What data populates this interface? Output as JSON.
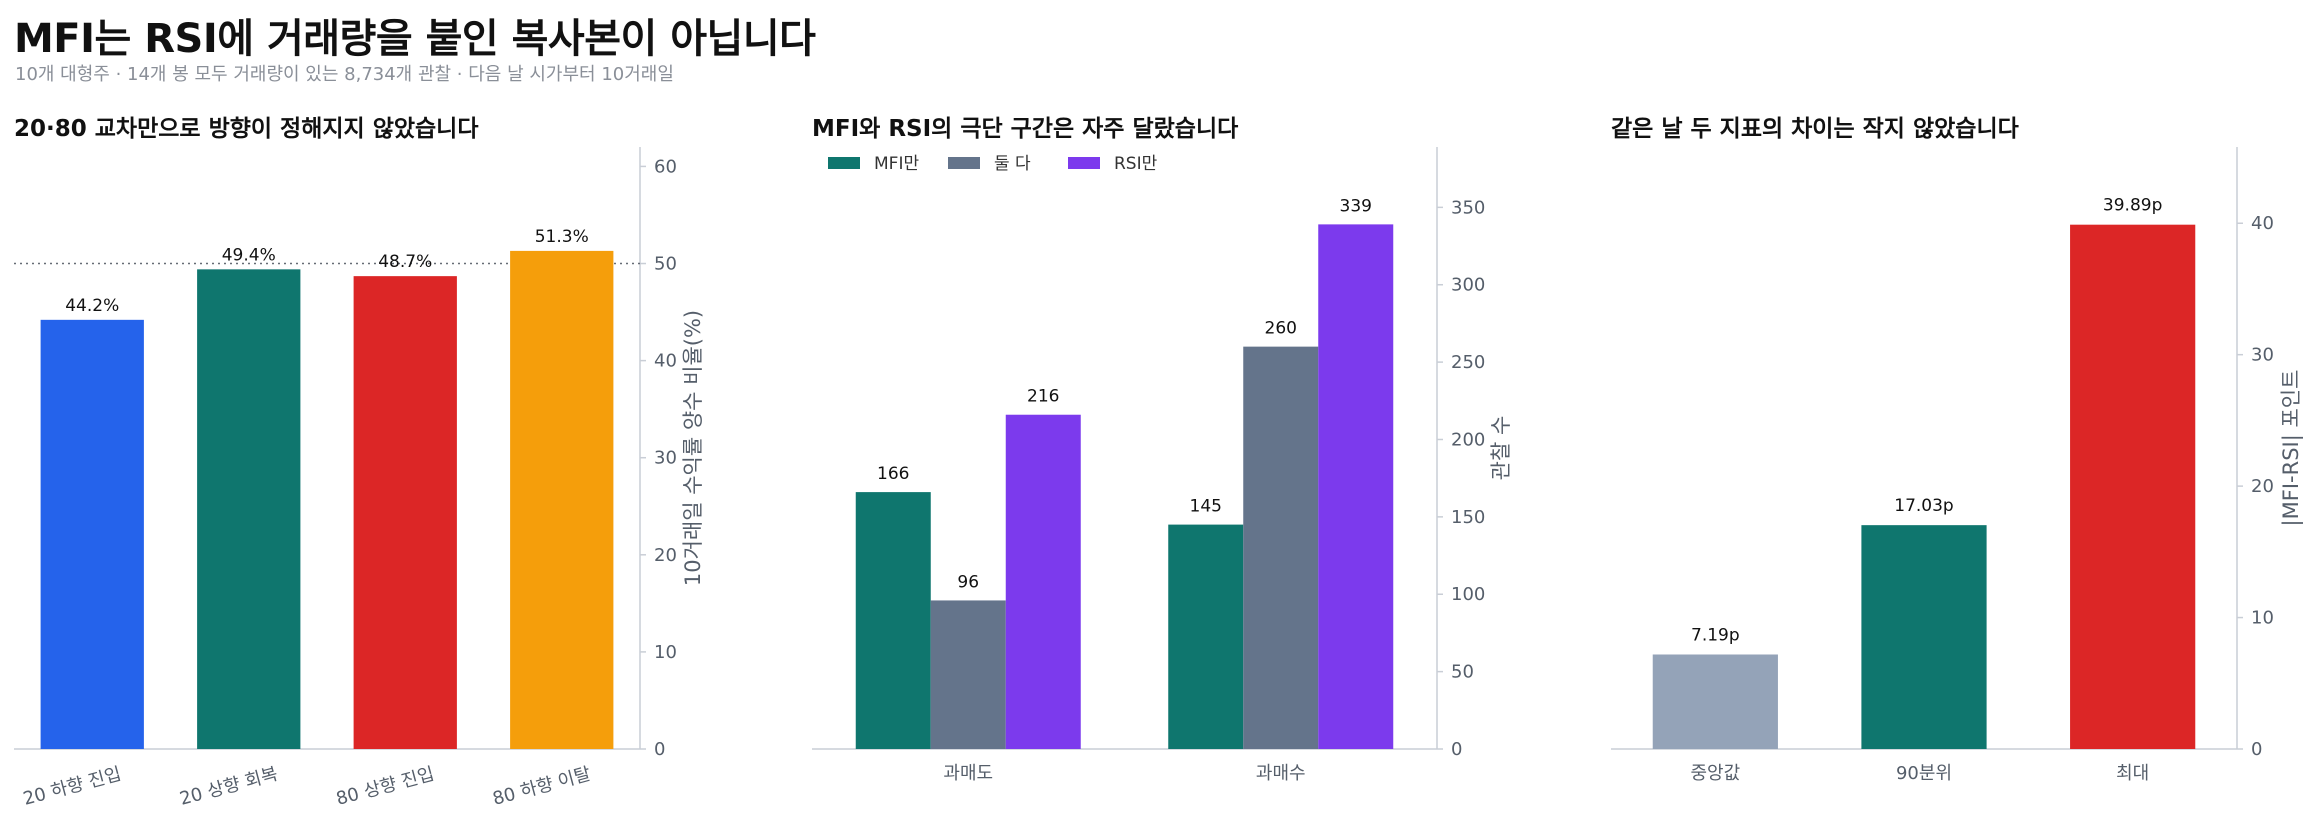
{
  "page": {
    "title": "MFI는 RSI에 거래량을 붙인 복사본이 아닙니다",
    "subtitle": "10개 대형주 · 14개 봉 모두 거래량이 있는 8,734개 관찰 · 다음 날 시가부터 10거래일"
  },
  "chart_data": [
    {
      "type": "bar",
      "title": "20·80 교차만으로 방향이 정해지지 않았습니다",
      "categories": [
        "20 하향 진입",
        "20 상향 회복",
        "80 상향 진입",
        "80 하향 이탈"
      ],
      "values": [
        44.2,
        49.4,
        48.7,
        51.3
      ],
      "data_labels": [
        "44.2%",
        "49.4%",
        "48.7%",
        "51.3%"
      ],
      "colors": [
        "#2563eb",
        "#0f766e",
        "#dc2626",
        "#f59e0b"
      ],
      "reference_line": 50,
      "ylabel": "10거래일 수익률 양수 비율(%)",
      "ylim": [
        0,
        62
      ],
      "yticks": [
        0,
        10,
        20,
        30,
        40,
        50,
        60
      ],
      "y_axis_side": "right",
      "xtick_rotation": "rotated",
      "grid": false
    },
    {
      "type": "bar",
      "title": "MFI와 RSI의 극단 구간은 자주 달랐습니다",
      "categories": [
        "과매도",
        "과매수"
      ],
      "series": [
        {
          "name": "MFI만",
          "values": [
            166,
            145
          ],
          "labels": [
            "166",
            "145"
          ],
          "color": "#0f766e"
        },
        {
          "name": "둘 다",
          "values": [
            96,
            260
          ],
          "labels": [
            "96",
            "260"
          ],
          "color": "#64748b"
        },
        {
          "name": "RSI만",
          "values": [
            216,
            339
          ],
          "labels": [
            "216",
            "339"
          ],
          "color": "#7c3aed"
        }
      ],
      "ylabel": "관찰 수",
      "ylim": [
        0,
        389
      ],
      "yticks": [
        0,
        50,
        100,
        150,
        200,
        250,
        300,
        350
      ],
      "y_axis_side": "right",
      "legend": "top-left",
      "grid": false
    },
    {
      "type": "bar",
      "title": "같은 날 두 지표의 차이는 작지 않았습니다",
      "categories": [
        "중앙값",
        "90분위",
        "최대"
      ],
      "values": [
        7.19,
        17.03,
        39.89
      ],
      "data_labels": [
        "7.19p",
        "17.03p",
        "39.89p"
      ],
      "colors": [
        "#94a3b8",
        "#0f766e",
        "#dc2626"
      ],
      "ylabel": "|MFI-RSI| 포인트",
      "ylim": [
        0,
        45.8
      ],
      "yticks": [
        0,
        10,
        20,
        30,
        40
      ],
      "y_axis_side": "right",
      "grid": false
    }
  ]
}
